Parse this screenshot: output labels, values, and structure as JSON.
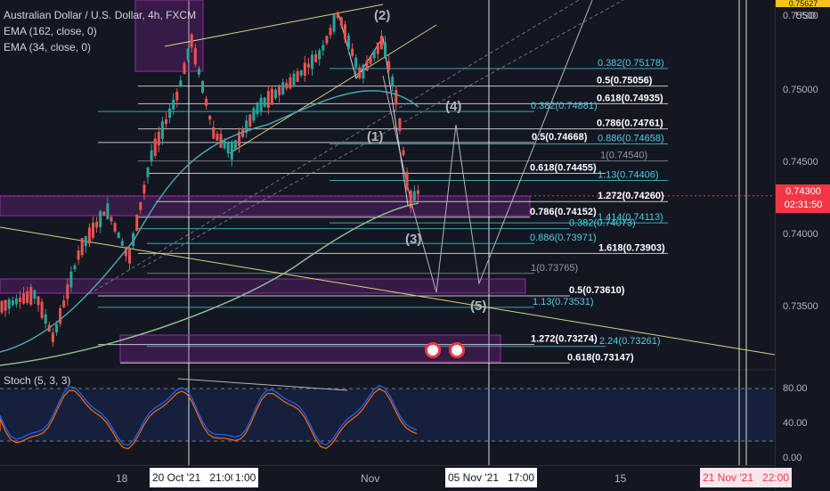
{
  "legend": {
    "symbol": "Australian Dollar / U.S. Dollar, 4h, FXCM",
    "ema_long": "EMA (162, close, 0)",
    "ema_short": "EMA (34, close, 0)"
  },
  "stoch_legend": "Stoch (5, 3, 3)",
  "price_axis": {
    "currency": "USD",
    "top_tag": "0.75627",
    "ticks": [
      "0.75500",
      "0.75000",
      "0.74500",
      "0.74000",
      "0.73500"
    ],
    "current_price": "0.74300",
    "countdown": "02:31:50"
  },
  "stoch_axis": {
    "ticks": [
      "80.00",
      "40.00",
      "0.00"
    ]
  },
  "time_axis": {
    "ticks": [
      "18",
      "Nov",
      "15"
    ],
    "box_left": "20 Oct '21",
    "box_left_time": "21:00",
    "box_left_partial": "1:00",
    "box_mid": "05 Nov '21",
    "box_mid_time": "17:00",
    "box_right": "21 Nov '21",
    "box_right_time": "22:00"
  },
  "chart_data": {
    "type": "candlestick",
    "y_range": [
      0.731,
      0.7565
    ],
    "fib_labels": [
      {
        "text": "0.382(0.75178)",
        "price": 0.75178,
        "color": "#4dd0e1"
      },
      {
        "text": "0.5(0.75056)",
        "price": 0.75056,
        "color": "#ffffff"
      },
      {
        "text": "0.618(0.74935)",
        "price": 0.74935,
        "color": "#ffffff"
      },
      {
        "text": "0.382(0.74881)",
        "price": 0.74881,
        "color": "#4dd0e1"
      },
      {
        "text": "0.786(0.74761)",
        "price": 0.74761,
        "color": "#ffffff"
      },
      {
        "text": "0.5(0.74668)",
        "price": 0.74668,
        "color": "#ffffff"
      },
      {
        "text": "0.886(0.74658)",
        "price": 0.74658,
        "color": "#4dd0e1"
      },
      {
        "text": "1(0.74540)",
        "price": 0.7454,
        "color": "#9598a1"
      },
      {
        "text": "0.618(0.74455)",
        "price": 0.74455,
        "color": "#ffffff"
      },
      {
        "text": "1.13(0.74406)",
        "price": 0.74406,
        "color": "#4dd0e1"
      },
      {
        "text": "1.272(0.74260)",
        "price": 0.7426,
        "color": "#ffffff"
      },
      {
        "text": "0.786(0.74152)",
        "price": 0.74152,
        "color": "#ffffff"
      },
      {
        "text": "1.414(0.74113)",
        "price": 0.74113,
        "color": "#4dd0e1"
      },
      {
        "text": "0.382(0.74073)",
        "price": 0.74073,
        "color": "#4dd0e1"
      },
      {
        "text": "0.886(0.73971)",
        "price": 0.73971,
        "color": "#4dd0e1"
      },
      {
        "text": "1.618(0.73903)",
        "price": 0.73903,
        "color": "#ffffff"
      },
      {
        "text": "1(0.73765)",
        "price": 0.73765,
        "color": "#9598a1"
      },
      {
        "text": "0.5(0.73610)",
        "price": 0.7361,
        "color": "#ffffff"
      },
      {
        "text": "1.13(0.73531)",
        "price": 0.73531,
        "color": "#4dd0e1"
      },
      {
        "text": "1.272(0.73274)",
        "price": 0.73274,
        "color": "#ffffff"
      },
      {
        "text": "2.24(0.73261)",
        "price": 0.73261,
        "color": "#4dd0e1"
      },
      {
        "text": "0.618(0.73147)",
        "price": 0.73147,
        "color": "#ffffff"
      }
    ],
    "wave_labels": [
      "(1)",
      "(2)",
      "(3)",
      "(4)",
      "(5)"
    ],
    "stoch_levels": [
      80,
      20
    ],
    "colors": {
      "up": "#26a69a",
      "down": "#ef5350",
      "ema_long": "#8fbc8f",
      "ema_short": "#4fa3b0",
      "trend": "#f0e68c",
      "stoch_k": "#2962ff",
      "stoch_d": "#ff6d00",
      "zone": "#9c27b0"
    }
  }
}
